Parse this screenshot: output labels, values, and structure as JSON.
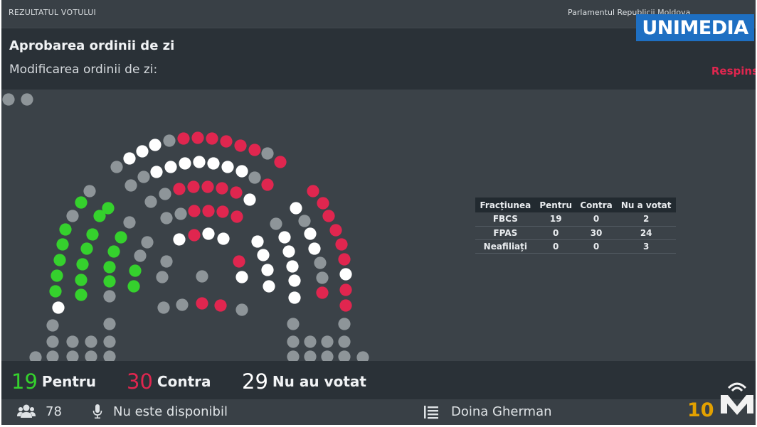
{
  "header": {
    "section_label": "REZULTATUL VOTULUI",
    "parliament_label": "Parlamentul Republicii Moldova",
    "broadcaster_logo": "UNIMEDIA"
  },
  "motion": {
    "title": "Aprobarea ordinii de zi",
    "subtitle": "Modificarea ordinii de zi:",
    "status": "Respins"
  },
  "colors": {
    "pentru": "#35d12d",
    "contra": "#e0264f",
    "nu_a_votat": "#ffffff",
    "absent": "#8e9599",
    "status": "#e0264f",
    "counter": "#e3a100"
  },
  "results_table": {
    "headers": [
      "Fracțiunea",
      "Pentru",
      "Contra",
      "Nu a votat"
    ],
    "rows": [
      [
        "FBCS",
        "19",
        "0",
        "2"
      ],
      [
        "FPAS",
        "0",
        "30",
        "24"
      ],
      [
        "Neafiliați",
        "0",
        "0",
        "3"
      ]
    ]
  },
  "totals": {
    "pentru": {
      "value": "19",
      "label": "Pentru"
    },
    "contra": {
      "value": "30",
      "label": "Contra"
    },
    "nu_au_votat": {
      "value": "29",
      "label": "Nu au votat"
    }
  },
  "footer": {
    "users_icon": "users-icon",
    "present_count": "78",
    "mic_icon": "microphone-icon",
    "mic_status": "Nu este disponibil",
    "list_icon": "list-icon",
    "speaker_name": "Doina Gherman",
    "counter_digits": "10"
  }
}
